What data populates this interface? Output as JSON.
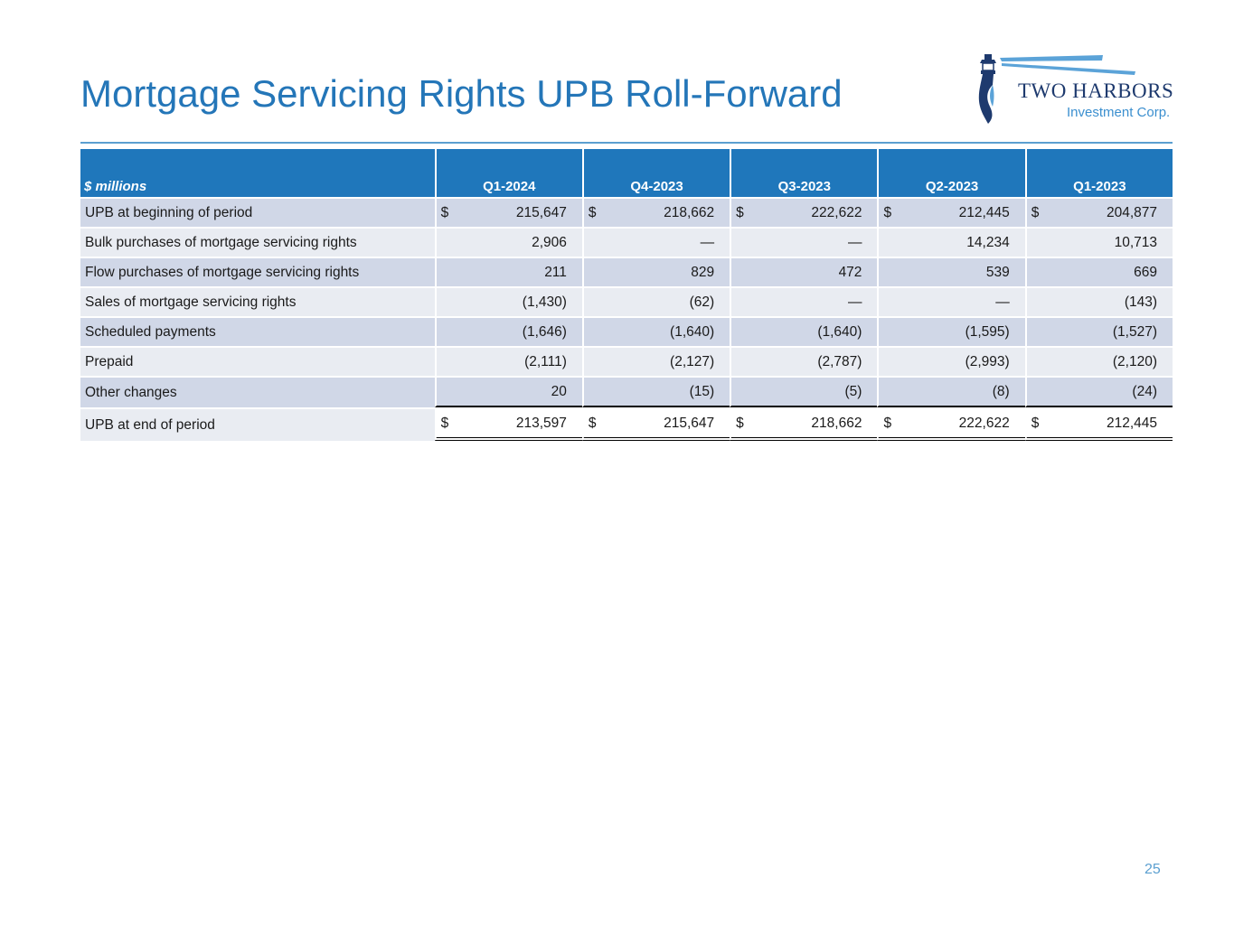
{
  "slide": {
    "title": "Mortgage Servicing Rights UPB Roll-Forward",
    "page_number": "25"
  },
  "logo": {
    "name": "TWO HARBORS",
    "sub": "Investment Corp."
  },
  "colors": {
    "title": "#2476b8",
    "header_bg": "#1f77bb",
    "row_odd": "#d0d7e7",
    "row_even": "#e9ecf2"
  },
  "table": {
    "unit_label": "$ millions",
    "columns": [
      "Q1-2024",
      "Q4-2023",
      "Q3-2023",
      "Q2-2023",
      "Q1-2023"
    ],
    "rows": [
      {
        "label": "UPB at beginning of period",
        "currency": "$",
        "values": [
          "215,647",
          "218,662",
          "222,622",
          "212,445",
          "204,877"
        ]
      },
      {
        "label": "Bulk purchases of mortgage servicing rights",
        "currency": "",
        "values": [
          "2,906",
          "—",
          "—",
          "14,234",
          "10,713"
        ]
      },
      {
        "label": "Flow purchases of mortgage servicing rights",
        "currency": "",
        "values": [
          "211",
          "829",
          "472",
          "539",
          "669"
        ]
      },
      {
        "label": "Sales of mortgage servicing rights",
        "currency": "",
        "values": [
          "(1,430)",
          "(62)",
          "—",
          "—",
          "(143)"
        ]
      },
      {
        "label": "Scheduled payments",
        "currency": "",
        "values": [
          "(1,646)",
          "(1,640)",
          "(1,640)",
          "(1,595)",
          "(1,527)"
        ]
      },
      {
        "label": "Prepaid",
        "currency": "",
        "values": [
          "(2,111)",
          "(2,127)",
          "(2,787)",
          "(2,993)",
          "(2,120)"
        ]
      },
      {
        "label": "Other changes",
        "currency": "",
        "values": [
          "20",
          "(15)",
          "(5)",
          "(8)",
          "(24)"
        ]
      },
      {
        "label": "UPB at end of period",
        "currency": "$",
        "values": [
          "213,597",
          "215,647",
          "218,662",
          "222,622",
          "212,445"
        ]
      }
    ]
  }
}
